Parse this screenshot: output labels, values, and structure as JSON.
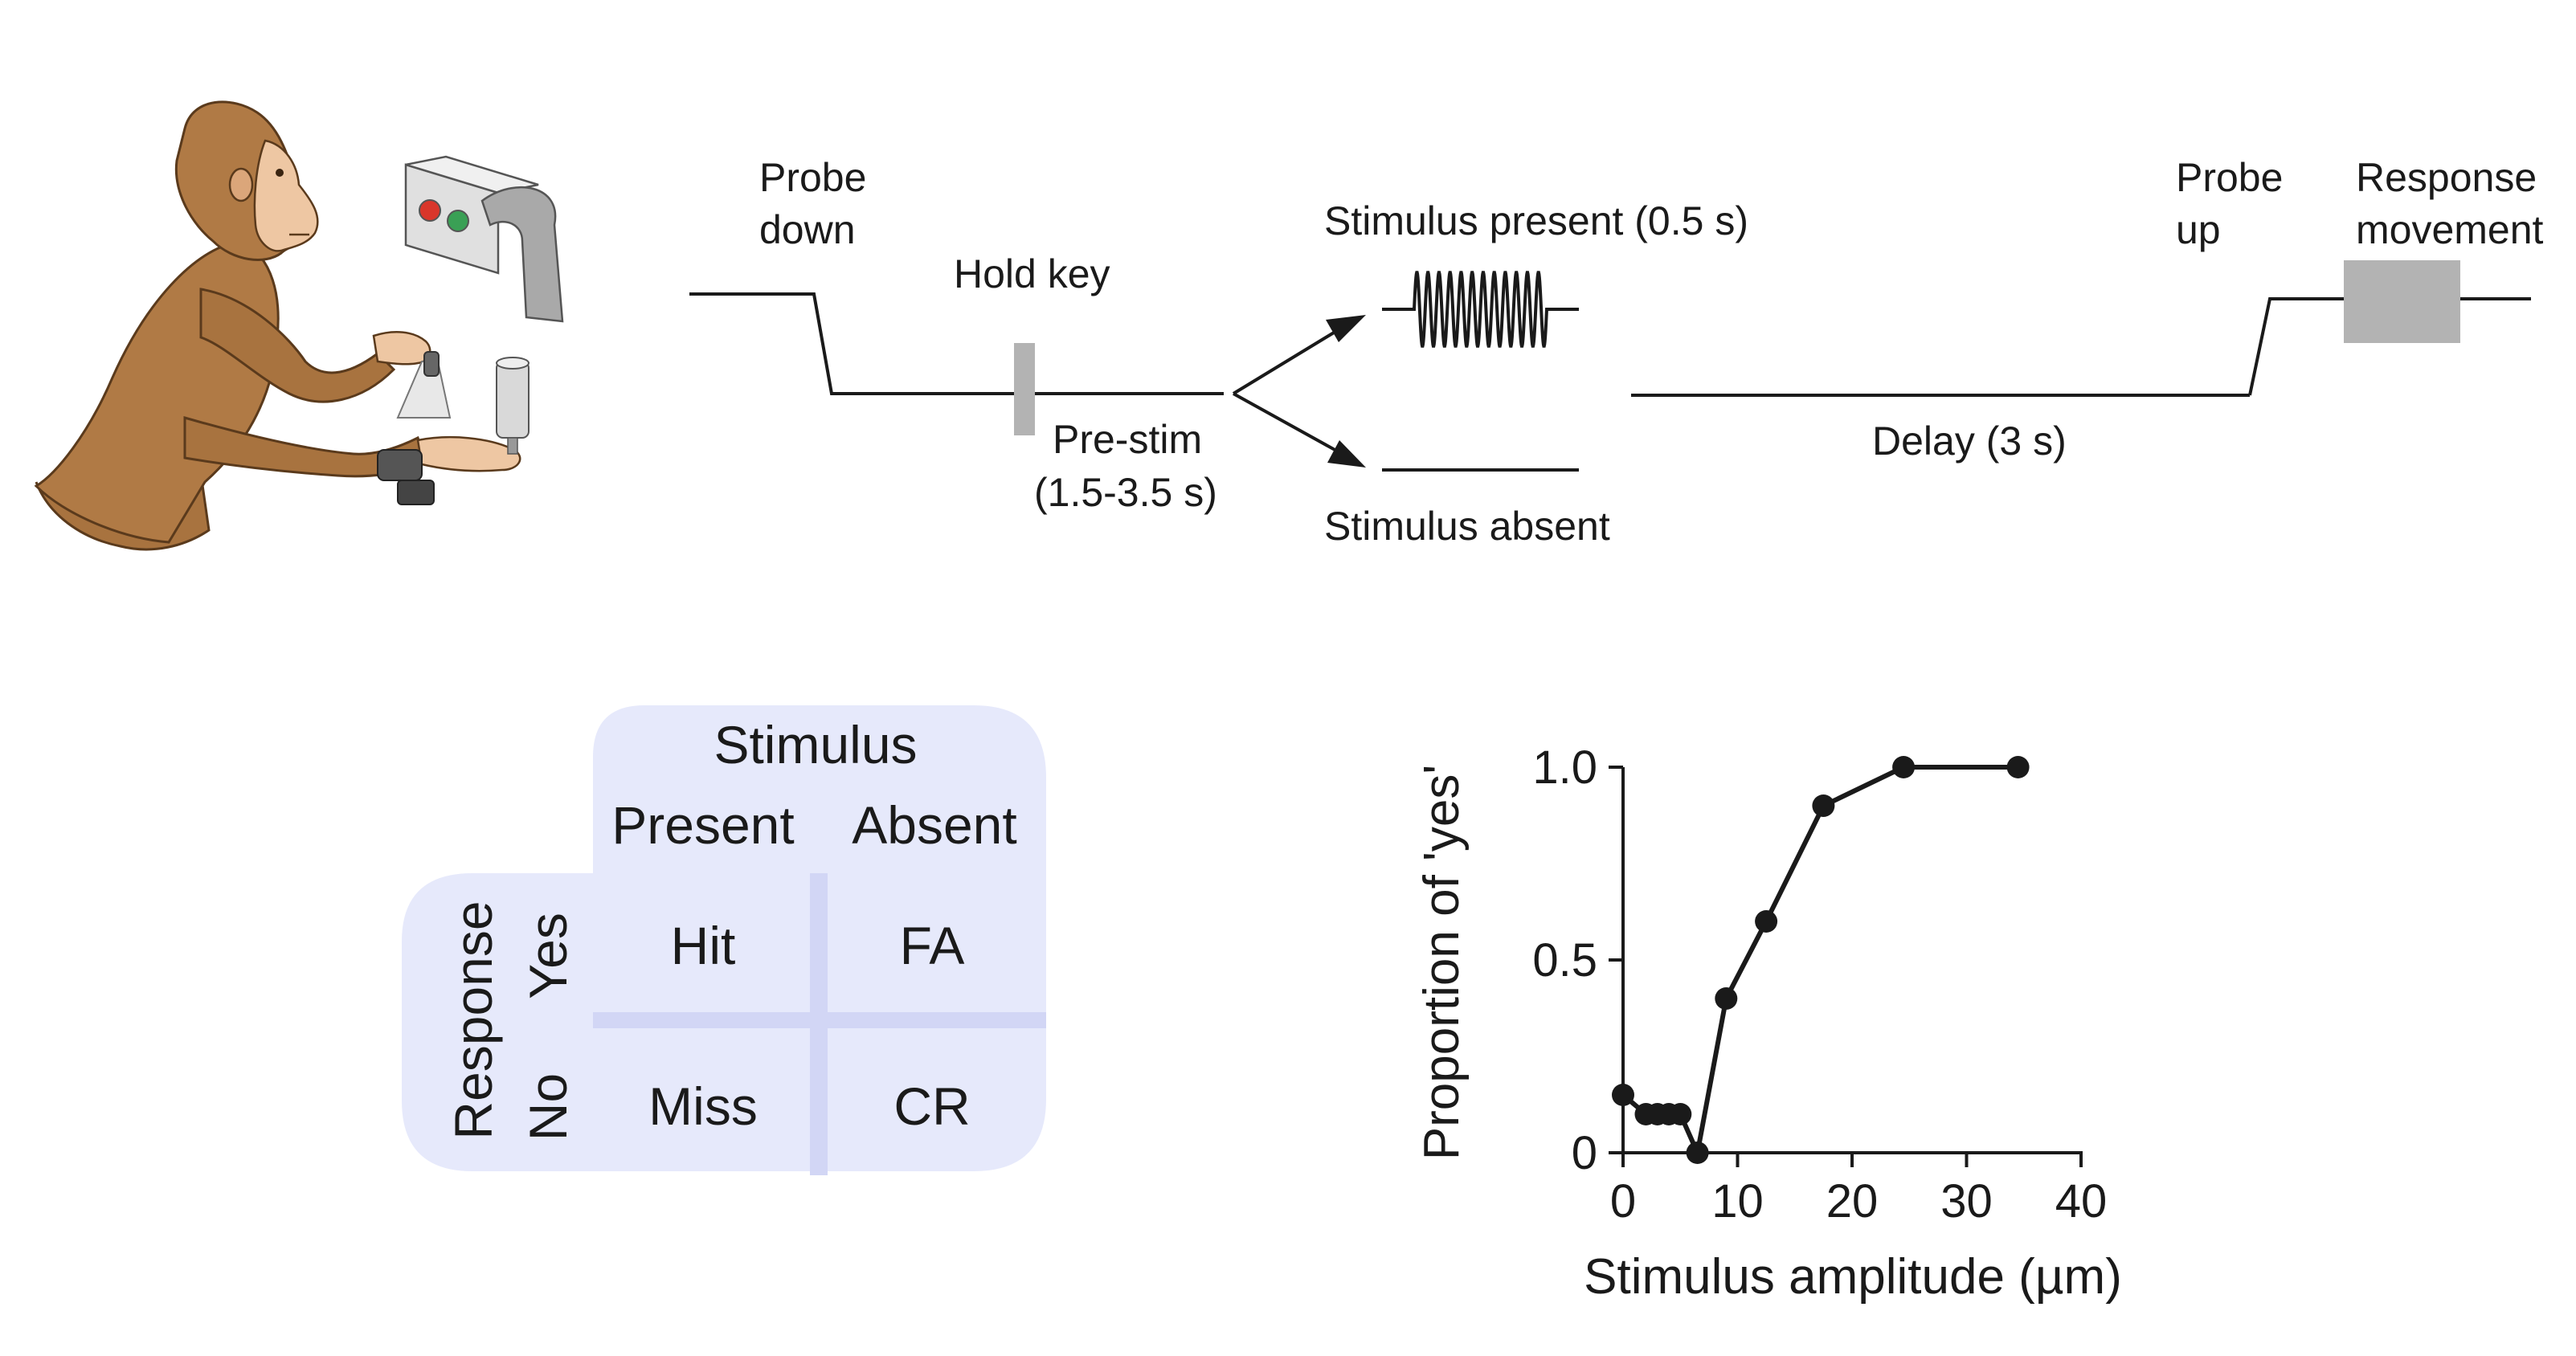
{
  "timeline": {
    "probe_down": [
      "Probe",
      "down"
    ],
    "hold_key": "Hold key",
    "pre_stim": [
      "Pre-stim",
      "(1.5-3.5 s)"
    ],
    "stimulus_present": "Stimulus present (0.5 s)",
    "stimulus_absent": "Stimulus absent",
    "delay": "Delay (3 s)",
    "probe_up": [
      "Probe",
      "up"
    ],
    "response_movement": [
      "Response",
      "movement"
    ]
  },
  "matrix": {
    "header": "Stimulus",
    "columns": [
      "Present",
      "Absent"
    ],
    "row_header": "Response",
    "rows": [
      "Yes",
      "No"
    ],
    "cells": [
      [
        "Hit",
        "FA"
      ],
      [
        "Miss",
        "CR"
      ]
    ]
  },
  "colors": {
    "matrix_fill": "#e6e9fb",
    "matrix_divider": "#d2d6f5",
    "bar_gray": "#b3b3b3",
    "line": "#1a1a1a",
    "monkey_fur": "#b07a45"
  },
  "chart_data": {
    "type": "line",
    "xlabel": "Stimulus amplitude (µm)",
    "ylabel": "Proportion of 'yes'",
    "xlim": [
      0,
      40
    ],
    "ylim": [
      0,
      1.0
    ],
    "xticks": [
      "0",
      "10",
      "20",
      "30",
      "40"
    ],
    "yticks": [
      "0",
      "0.5",
      "1.0"
    ],
    "series": [
      {
        "x": [
          0,
          2,
          3,
          4,
          5,
          6.5,
          9,
          12.5,
          17.5,
          24.5,
          34.5
        ],
        "y": [
          0.15,
          0.1,
          0.1,
          0.1,
          0.1,
          0.0,
          0.4,
          0.6,
          0.9,
          1.0,
          1.0
        ]
      }
    ]
  }
}
